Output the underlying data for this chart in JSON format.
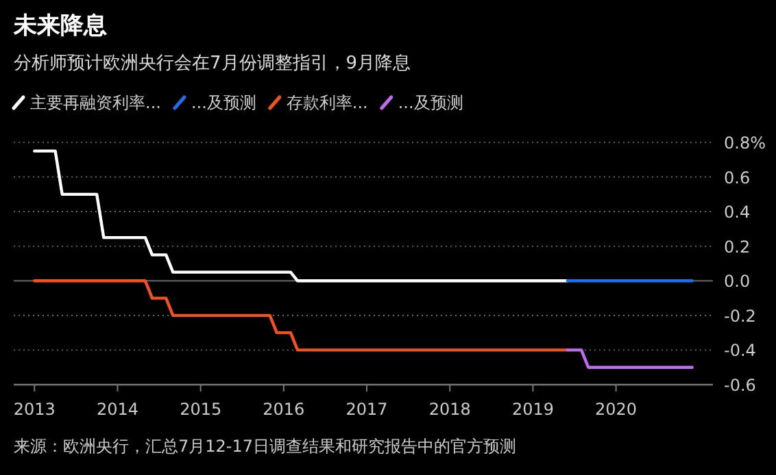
{
  "chart_data": {
    "type": "line",
    "title": "未来降息",
    "subtitle": "分析师预计欧洲央行会在7月份调整指引，9月降息",
    "annotations": [
      "来源：欧洲央行，汇总7月12-17日调查结果和研究报告中的官方预测"
    ],
    "series": [
      {
        "name": "主要再融资利率...",
        "color": "#ffffff",
        "x": [
          "2013-01",
          "2013-04",
          "2013-05",
          "2013-10",
          "2013-11",
          "2014-05",
          "2014-06",
          "2014-08",
          "2014-09",
          "2016-02",
          "2016-03",
          "2019-06"
        ],
        "values": [
          0.75,
          0.75,
          0.5,
          0.5,
          0.25,
          0.25,
          0.15,
          0.15,
          0.05,
          0.05,
          0.0,
          0.0
        ]
      },
      {
        "name": "...及预测",
        "color": "#1f6fe8",
        "x": [
          "2019-06",
          "2020-12"
        ],
        "values": [
          0.0,
          0.0
        ]
      },
      {
        "name": "存款利率...",
        "color": "#f4511e",
        "x": [
          "2013-01",
          "2014-05",
          "2014-06",
          "2014-08",
          "2014-09",
          "2015-11",
          "2015-12",
          "2016-02",
          "2016-03",
          "2019-06"
        ],
        "values": [
          0.0,
          0.0,
          -0.1,
          -0.1,
          -0.2,
          -0.2,
          -0.3,
          -0.3,
          -0.4,
          -0.4
        ]
      },
      {
        "name": "...及预测",
        "color": "#c26bf2",
        "x": [
          "2019-06",
          "2019-08",
          "2019-09",
          "2020-12"
        ],
        "values": [
          -0.4,
          -0.4,
          -0.5,
          -0.5
        ]
      }
    ],
    "xlim": [
      "2012-10",
      "2021-03"
    ],
    "xticks": [
      "2013",
      "2014",
      "2015",
      "2016",
      "2017",
      "2018",
      "2019",
      "2020"
    ],
    "ylim": [
      -0.6,
      0.8
    ],
    "yticks": [
      {
        "value": 0.8,
        "label": "0.8%"
      },
      0.6,
      0.4,
      0.2,
      {
        "value": 0,
        "label": "0.0"
      },
      -0.2,
      -0.4,
      -0.6
    ],
    "grid": "y",
    "legend": "top left",
    "line_style": "solid",
    "marker": "none"
  }
}
